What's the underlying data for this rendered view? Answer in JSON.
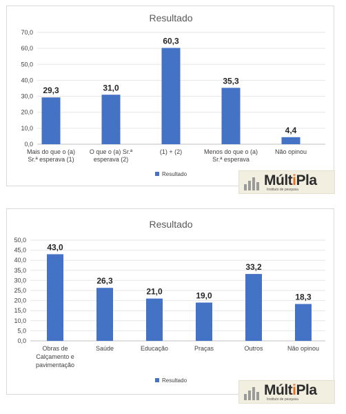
{
  "colors": {
    "bar": "#4472c4",
    "grid": "#e6e6e6",
    "axis_text": "#404040",
    "title": "#595959"
  },
  "chart_data": [
    {
      "type": "bar",
      "title": "Resultado",
      "categories": [
        [
          "Mais do que o (a)",
          "Sr.ª esperava (1)"
        ],
        [
          "O que o (a) Sr.ª",
          "esperava (2)"
        ],
        [
          "(1) + (2)"
        ],
        [
          "Menos do que o (a)",
          "Sr.ª esperava"
        ],
        [
          "Não opinou"
        ]
      ],
      "series": [
        {
          "name": "Resultado",
          "values": [
            29.3,
            31.0,
            60.3,
            35.3,
            4.4
          ]
        }
      ],
      "value_labels": [
        "29,3",
        "31,0",
        "60,3",
        "35,3",
        "4,4"
      ],
      "ylim": [
        0,
        70
      ],
      "yticks": [
        "0,0",
        "10,0",
        "20,0",
        "30,0",
        "40,0",
        "50,0",
        "60,0",
        "70,0"
      ],
      "grid": true,
      "legend": "bottom"
    },
    {
      "type": "bar",
      "title": "Resultado",
      "categories": [
        [
          "Obras de",
          "Calçamento e",
          "pavimentação"
        ],
        [
          "Saúde"
        ],
        [
          "Educação"
        ],
        [
          "Praças"
        ],
        [
          "Outros"
        ],
        [
          "Não opinou"
        ]
      ],
      "series": [
        {
          "name": "Resultado",
          "values": [
            43.0,
            26.3,
            21.0,
            19.0,
            33.2,
            18.3
          ]
        }
      ],
      "value_labels": [
        "43,0",
        "26,3",
        "21,0",
        "19,0",
        "33,2",
        "18,3"
      ],
      "ylim": [
        0,
        50
      ],
      "yticks": [
        "0,0",
        "5,0",
        "10,0",
        "15,0",
        "20,0",
        "25,0",
        "30,0",
        "35,0",
        "40,0",
        "45,0",
        "50,0"
      ],
      "grid": true,
      "legend": "bottom"
    }
  ],
  "logo": {
    "word_start": "Múlt",
    "word_accent": "i",
    "word_end": "Pla",
    "tagline": "Instituto de pesquisa"
  }
}
